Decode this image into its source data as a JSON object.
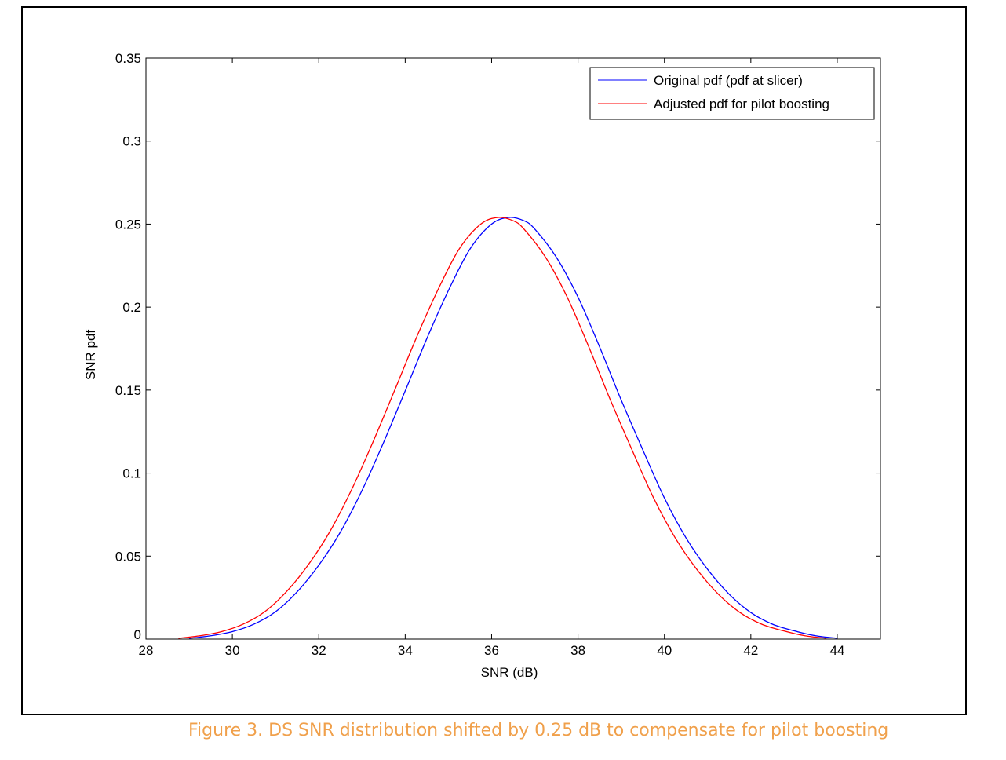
{
  "caption": "Figure 3. DS SNR distribution shifted by 0.25 dB to compensate for pilot boosting",
  "colors": {
    "series_original": "#0000ff",
    "series_adjusted": "#ff0000",
    "caption": "#f0a04b"
  },
  "chart_data": {
    "type": "line",
    "title": "",
    "xlabel": "SNR (dB)",
    "ylabel": "SNR pdf",
    "xlim": [
      28,
      45
    ],
    "ylim": [
      0,
      0.35
    ],
    "xticks": [
      28,
      30,
      32,
      34,
      36,
      38,
      40,
      42,
      44
    ],
    "xtick_labels": [
      "28",
      "30",
      "32",
      "34",
      "36",
      "38",
      "40",
      "42",
      "44"
    ],
    "yticks": [
      0,
      0.05,
      0.1,
      0.15,
      0.2,
      0.25,
      0.3,
      0.35
    ],
    "ytick_labels": [
      "0",
      "0.05",
      "0.1",
      "0.15",
      "0.2",
      "0.25",
      "0.3",
      "0.35"
    ],
    "grid": false,
    "legend_position": "top-right",
    "series": [
      {
        "name": "Original pdf (pdf at slicer)",
        "color": "#0000ff",
        "x": [
          29.0,
          29.5,
          30.0,
          30.5,
          31.0,
          31.5,
          32.0,
          32.5,
          33.0,
          33.5,
          34.0,
          34.5,
          35.0,
          35.5,
          36.0,
          36.4,
          36.75,
          37.0,
          37.5,
          38.0,
          38.5,
          39.0,
          39.5,
          40.0,
          40.5,
          41.0,
          41.5,
          42.0,
          42.5,
          43.0,
          43.5,
          44.0
        ],
        "y": [
          0.0005,
          0.002,
          0.0045,
          0.009,
          0.0165,
          0.0285,
          0.0445,
          0.0645,
          0.0895,
          0.1185,
          0.1495,
          0.181,
          0.21,
          0.235,
          0.25,
          0.254,
          0.252,
          0.247,
          0.23,
          0.206,
          0.176,
          0.144,
          0.114,
          0.085,
          0.061,
          0.042,
          0.027,
          0.016,
          0.009,
          0.005,
          0.002,
          0.0005
        ]
      },
      {
        "name": "Adjusted pdf for pilot boosting",
        "color": "#ff0000",
        "x": [
          28.75,
          29.25,
          29.75,
          30.25,
          30.75,
          31.25,
          31.75,
          32.25,
          32.75,
          33.25,
          33.75,
          34.25,
          34.75,
          35.25,
          35.75,
          36.15,
          36.5,
          36.75,
          37.25,
          37.75,
          38.25,
          38.75,
          39.25,
          39.75,
          40.25,
          40.75,
          41.25,
          41.75,
          42.25,
          42.75,
          43.25,
          43.75
        ],
        "y": [
          0.0005,
          0.002,
          0.0045,
          0.009,
          0.0165,
          0.0285,
          0.0445,
          0.0645,
          0.0895,
          0.1185,
          0.1495,
          0.181,
          0.21,
          0.235,
          0.25,
          0.254,
          0.252,
          0.247,
          0.23,
          0.206,
          0.176,
          0.144,
          0.114,
          0.085,
          0.061,
          0.042,
          0.027,
          0.016,
          0.009,
          0.005,
          0.002,
          0.0005
        ]
      }
    ]
  }
}
